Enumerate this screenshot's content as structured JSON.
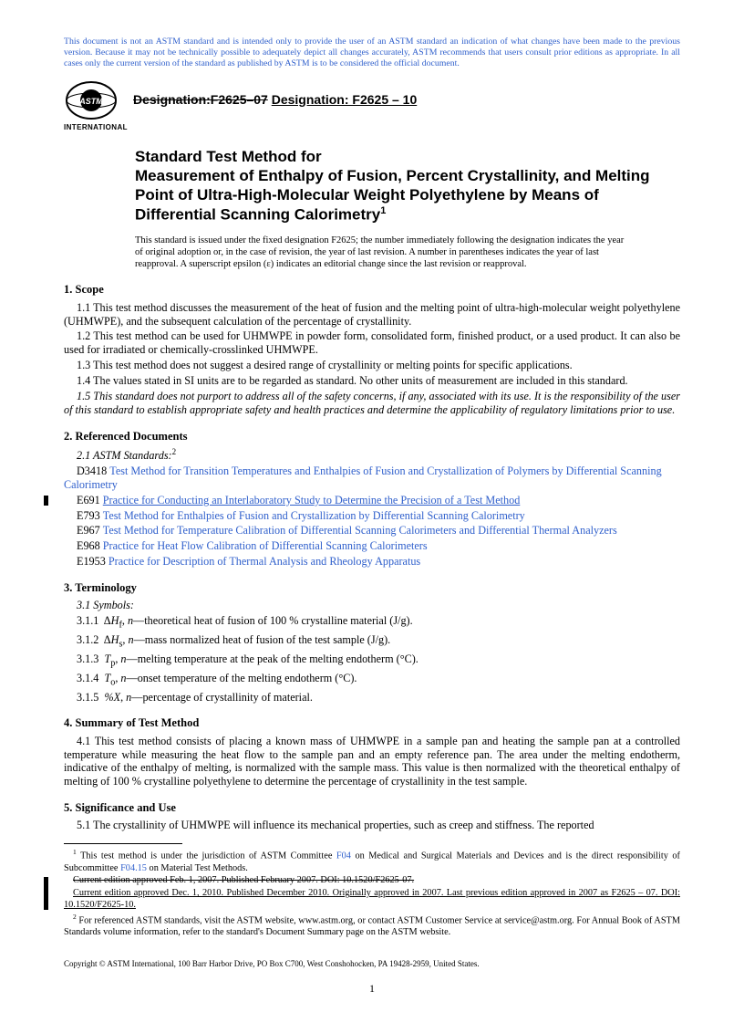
{
  "colors": {
    "link": "#3060cc",
    "text": "#000000",
    "background": "#ffffff"
  },
  "disclaimer": "This document is not an ASTM standard and is intended only to provide the user of an ASTM standard an indication of what changes have been made to the previous version. Because it may not be technically possible to adequately depict all changes accurately, ASTM recommends that users consult prior editions as appropriate. In all cases only the current version of the standard as published by ASTM is to be considered the official document.",
  "logo": {
    "international": "INTERNATIONAL"
  },
  "designation": {
    "old": "Designation:F2625–07",
    "new": "Designation: F2625 – 10"
  },
  "title": {
    "lead": "Standard Test Method for",
    "main": "Measurement of Enthalpy of Fusion, Percent Crystallinity, and Melting Point of Ultra-High-Molecular Weight Polyethylene by Means of Differential Scanning Calorimetry",
    "footmark": "1"
  },
  "issuance": "This standard is issued under the fixed designation F2625; the number immediately following the designation indicates the year of original adoption or, in the case of revision, the year of last revision. A number in parentheses indicates the year of last reapproval. A superscript epsilon (ε) indicates an editorial change since the last revision or reapproval.",
  "sections": {
    "scope": {
      "heading": "1. Scope",
      "items": [
        "1.1 This test method discusses the measurement of the heat of fusion and the melting point of ultra-high-molecular weight polyethylene (UHMWPE), and the subsequent calculation of the percentage of crystallinity.",
        "1.2 This test method can be used for UHMWPE in powder form, consolidated form, finished product, or a used product. It can also be used for irradiated or chemically-crosslinked UHMWPE.",
        "1.3 This test method does not suggest a desired range of crystallinity or melting points for specific applications.",
        "1.4 The values stated in SI units are to be regarded as standard. No other units of measurement are included in this standard."
      ],
      "safety": "1.5 This standard does not purport to address all of the safety concerns, if any, associated with its use. It is the responsibility of the user of this standard to establish appropriate safety and health practices and determine the applicability of regulatory limitations prior to use."
    },
    "referenced": {
      "heading": "2. Referenced Documents",
      "sub": "2.1 ASTM Standards:",
      "footmark": "2",
      "refs": [
        {
          "code": "D3418",
          "title": "Test Method for Transition Temperatures and Enthalpies of Fusion and Crystallization of Polymers by Differential Scanning Calorimetry",
          "changed": false
        },
        {
          "code": "E691",
          "title": "Practice for Conducting an Interlaboratory Study to Determine the Precision of a Test Method",
          "changed": true
        },
        {
          "code": "E793",
          "title": "Test Method for Enthalpies of Fusion and Crystallization by Differential Scanning Calorimetry",
          "changed": false
        },
        {
          "code": "E967",
          "title": "Test Method for Temperature Calibration of Differential Scanning Calorimeters and Differential Thermal Analyzers",
          "changed": false
        },
        {
          "code": "E968",
          "title": "Practice for Heat Flow Calibration of Differential Scanning Calorimeters",
          "changed": false
        },
        {
          "code": "E1953",
          "title": "Practice for Description of Thermal Analysis and Rheology Apparatus",
          "changed": false
        }
      ]
    },
    "terminology": {
      "heading": "3. Terminology",
      "sub": "3.1 Symbols:",
      "terms": [
        {
          "num": "3.1.1",
          "sym_html": "Δ<i>H</i><sub>f</sub>, <i>n</i>",
          "def": "—theoretical heat of fusion of 100 % crystalline material (J/g)."
        },
        {
          "num": "3.1.2",
          "sym_html": "Δ<i>H</i><sub>s</sub>, <i>n</i>",
          "def": "—mass normalized heat of fusion of the test sample (J/g)."
        },
        {
          "num": "3.1.3",
          "sym_html": "<i>T</i><sub>p</sub>, <i>n</i>",
          "def": "—melting temperature at the peak of the melting endotherm (°C)."
        },
        {
          "num": "3.1.4",
          "sym_html": "<i>T</i><sub>o</sub>, <i>n</i>",
          "def": "—onset temperature of the melting endotherm (°C)."
        },
        {
          "num": "3.1.5",
          "sym_html": "<i>%X</i>, <i>n</i>",
          "def": "—percentage of crystallinity of material."
        }
      ]
    },
    "summary": {
      "heading": "4. Summary of Test Method",
      "text": "4.1 This test method consists of placing a known mass of UHMWPE in a sample pan and heating the sample pan at a controlled temperature while measuring the heat flow to the sample pan and an empty reference pan. The area under the melting endotherm, indicative of the enthalpy of melting, is normalized with the sample mass. This value is then normalized with the theoretical enthalpy of melting of 100 % crystalline polyethylene to determine the percentage of crystallinity in the test sample."
    },
    "significance": {
      "heading": "5. Significance and Use",
      "text": "5.1 The crystallinity of UHMWPE will influence its mechanical properties, such as creep and stiffness. The reported"
    }
  },
  "footnotes": {
    "f1_a": " This test method is under the jurisdiction of ASTM Committee ",
    "f1_link1": "F04",
    "f1_b": " on Medical and Surgical Materials and Devices and is the direct responsibility of Subcommittee ",
    "f1_link2": "F04.15",
    "f1_c": " on Material Test Methods.",
    "f1_struck": "Current edition approved Feb. 1, 2007. Published February 2007. DOI: 10.1520/F2625-07.",
    "f1_new_a": "Current edition approved Dec. 1, 2010. Published December 2010. Originally approved in 2007. Last previous edition approved in 2007 as F2625 – 07. DOI: ",
    "f1_new_doi": "10.1520/F2625-10.",
    "f2": " For referenced ASTM standards, visit the ASTM website, www.astm.org, or contact ASTM Customer Service at service@astm.org. For Annual Book of ASTM Standards volume information, refer to the standard's Document Summary page on the ASTM website."
  },
  "copyright": "Copyright © ASTM International, 100 Barr Harbor Drive, PO Box C700, West Conshohocken, PA 19428-2959, United States.",
  "page_number": "1"
}
